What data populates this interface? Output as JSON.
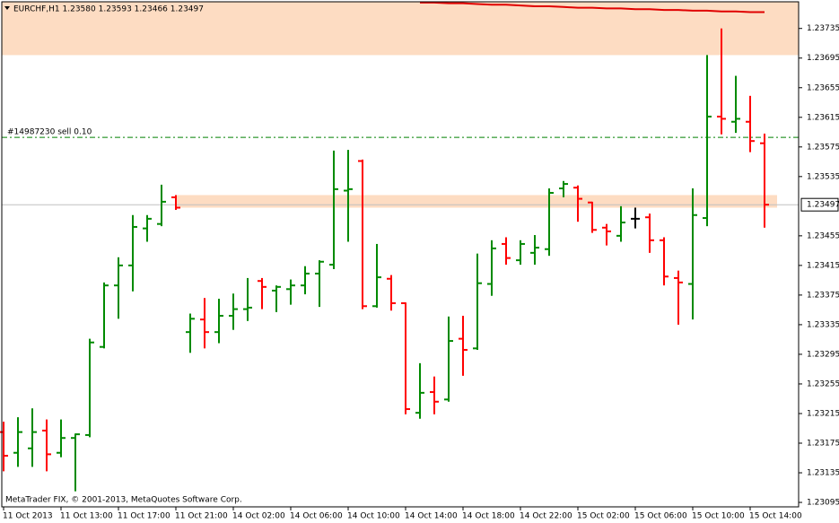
{
  "chart_data": {
    "type": "ohlc",
    "title": "EURCHF,H1  1.23580 1.23593 1.23466 1.23497",
    "watermark": "MetaTrader FIX, © 2001-2013, MetaQuotes Software Corp.",
    "categories": [
      "11 Oct 2013",
      null,
      null,
      null,
      "11 Oct 13:00",
      null,
      null,
      null,
      "11 Oct 17:00",
      null,
      null,
      null,
      "11 Oct 21:00",
      null,
      null,
      null,
      "14 Oct 02:00",
      null,
      null,
      null,
      "14 Oct 06:00",
      null,
      null,
      null,
      "14 Oct 10:00",
      null,
      null,
      null,
      "14 Oct 14:00",
      null,
      null,
      null,
      "14 Oct 18:00",
      null,
      null,
      null,
      "14 Oct 22:00",
      null,
      null,
      null,
      "15 Oct 02:00",
      null,
      null,
      null,
      "15 Oct 06:00",
      null,
      null,
      null,
      "15 Oct 10:00",
      null,
      null,
      null,
      "15 Oct 14:00",
      null
    ],
    "open": [
      1.2319,
      1.23162,
      1.23168,
      1.23192,
      1.23162,
      1.23182,
      1.23186,
      1.23305,
      1.23388,
      1.23415,
      1.23465,
      1.23471,
      1.23507,
      1.23325,
      1.23342,
      1.23325,
      1.23347,
      1.23356,
      1.23394,
      1.23381,
      1.23383,
      1.23388,
      1.23404,
      1.23416,
      1.23516,
      1.23556,
      1.2336,
      1.23397,
      1.23364,
      1.23216,
      1.23244,
      1.23234,
      1.23316,
      1.23303,
      1.2339,
      1.23444,
      1.23422,
      1.23432,
      1.23437,
      1.23519,
      1.2352,
      1.235,
      1.23466,
      1.23455,
      1.23478,
      1.2348,
      1.23449,
      1.23398,
      1.2339,
      1.23479,
      1.23616,
      1.23609,
      1.23609,
      1.2358
    ],
    "high": [
      1.23204,
      1.2321,
      1.23222,
      1.23207,
      1.23207,
      1.23188,
      1.23316,
      1.23392,
      1.23426,
      1.23483,
      1.23483,
      1.23524,
      1.2351,
      1.2335,
      1.23371,
      1.2337,
      1.23377,
      1.23398,
      1.23398,
      1.23388,
      1.23396,
      1.23414,
      1.23422,
      1.2357,
      1.23571,
      1.23558,
      1.23444,
      1.23402,
      1.23365,
      1.23283,
      1.23265,
      1.23346,
      1.23347,
      1.23431,
      1.23449,
      1.23453,
      1.23449,
      1.23456,
      1.23519,
      1.23529,
      1.23523,
      1.23501,
      1.23471,
      1.23495,
      1.23493,
      1.23485,
      1.23453,
      1.23408,
      1.23519,
      1.23699,
      1.23735,
      1.23671,
      1.23644,
      1.23593
    ],
    "low": [
      1.23137,
      1.23143,
      1.23143,
      1.23137,
      1.23156,
      1.2311,
      1.23183,
      1.23303,
      1.23343,
      1.2338,
      1.23447,
      1.23468,
      1.2349,
      1.23297,
      1.23303,
      1.2331,
      1.23328,
      1.2334,
      1.23356,
      1.23352,
      1.23362,
      1.23376,
      1.23359,
      1.2341,
      1.23447,
      1.23356,
      1.23358,
      1.23354,
      1.23214,
      1.23208,
      1.23214,
      1.23231,
      1.23266,
      1.23301,
      1.23374,
      1.23416,
      1.23416,
      1.23416,
      1.23428,
      1.23507,
      1.23474,
      1.23459,
      1.23442,
      1.23447,
      1.23465,
      1.23432,
      1.23388,
      1.23335,
      1.23342,
      1.23468,
      1.23592,
      1.23594,
      1.23568,
      1.23466
    ],
    "close": [
      1.23158,
      1.2319,
      1.2319,
      1.2316,
      1.23182,
      1.23187,
      1.23311,
      1.23388,
      1.23415,
      1.23467,
      1.23478,
      1.23501,
      1.23493,
      1.23343,
      1.23325,
      1.23347,
      1.23356,
      1.23358,
      1.23386,
      1.23386,
      1.23388,
      1.23404,
      1.2342,
      1.23518,
      1.23518,
      1.2336,
      1.23399,
      1.23364,
      1.23221,
      1.23243,
      1.23231,
      1.23313,
      1.23301,
      1.23391,
      1.23438,
      1.23425,
      1.23444,
      1.23439,
      1.23513,
      1.23525,
      1.23505,
      1.23463,
      1.23461,
      1.23473,
      1.23478,
      1.23449,
      1.234,
      1.23392,
      1.23483,
      1.23616,
      1.23613,
      1.23613,
      1.23583,
      1.23497
    ],
    "up_color": "#008a00",
    "down_color": "#ff0000",
    "flat_color": "#000000",
    "indicator": {
      "color": "#e00000",
      "values": [
        null,
        null,
        null,
        null,
        null,
        null,
        null,
        null,
        null,
        null,
        null,
        null,
        null,
        null,
        null,
        null,
        null,
        null,
        null,
        null,
        null,
        null,
        null,
        null,
        null,
        null,
        null,
        null,
        null,
        1.2377,
        1.2377,
        1.23769,
        1.23769,
        1.23768,
        1.23767,
        1.23767,
        1.23766,
        1.23765,
        1.23765,
        1.23764,
        1.23763,
        1.23763,
        1.23762,
        1.23762,
        1.23761,
        1.23761,
        1.2376,
        1.2376,
        1.23759,
        1.23759,
        1.23758,
        1.23758,
        1.23757,
        1.23757
      ]
    },
    "zones": [
      {
        "from": 1.23699,
        "to": 1.23771,
        "color": "#fddcc2"
      },
      {
        "from": 1.23493,
        "to": 1.2351,
        "color": "#fddcc2"
      }
    ],
    "order_line": {
      "label": "#14987230 sell 0.10",
      "price": 1.23588,
      "color": "#008000"
    },
    "current_price": 1.23497,
    "ylim": [
      1.23089,
      1.23771
    ],
    "yticks": [
      1.23735,
      1.23695,
      1.23655,
      1.23615,
      1.23575,
      1.23535,
      1.23455,
      1.23415,
      1.23375,
      1.23335,
      1.23295,
      1.23255,
      1.23215,
      1.23175,
      1.23135,
      1.23095
    ]
  }
}
